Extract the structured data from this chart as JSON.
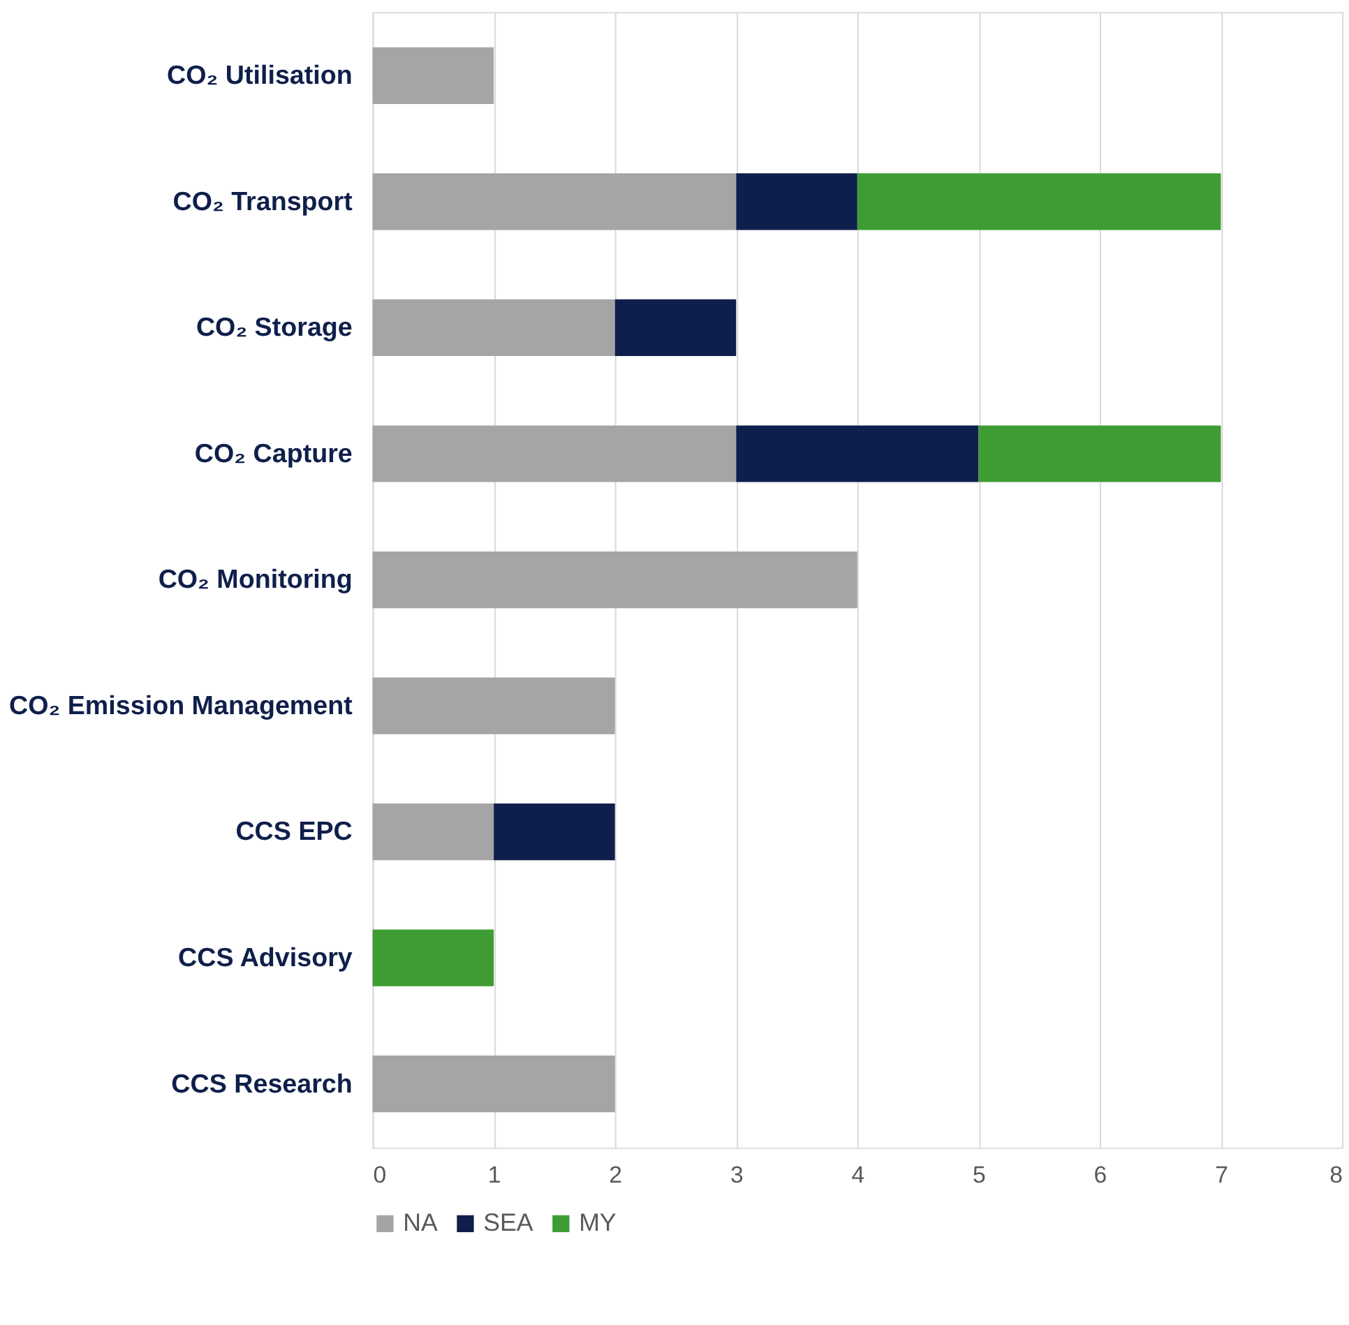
{
  "chart_data": {
    "type": "bar",
    "orientation": "horizontal",
    "stacked": true,
    "categories": [
      "CO₂ Utilisation",
      "CO₂ Transport",
      "CO₂ Storage",
      "CO₂ Capture",
      "CO₂ Monitoring",
      "CO₂ Emission Management",
      "CCS EPC",
      "CCS Advisory",
      "CCS Research"
    ],
    "series": [
      {
        "name": "NA",
        "color": "#a5a5a5",
        "values": [
          1,
          3,
          2,
          3,
          4,
          2,
          1,
          null,
          2
        ]
      },
      {
        "name": "SEA",
        "color": "#0f1f4b",
        "values": [
          null,
          1,
          1,
          2,
          null,
          null,
          1,
          null,
          null
        ]
      },
      {
        "name": "MY",
        "color": "#3f9c35",
        "values": [
          null,
          3,
          null,
          2,
          null,
          null,
          null,
          1,
          null
        ]
      }
    ],
    "xlim": [
      0,
      8
    ],
    "xticks": [
      0,
      1,
      2,
      3,
      4,
      5,
      6,
      7,
      8
    ],
    "grid": "x",
    "legend": "bottom"
  }
}
